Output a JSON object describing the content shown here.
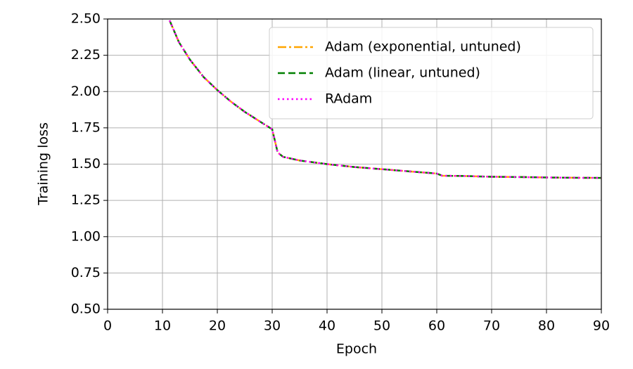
{
  "chart_data": {
    "type": "line",
    "xlabel": "Epoch",
    "ylabel": "Training loss",
    "x": [
      11.3,
      13,
      15,
      17.5,
      20,
      22.5,
      25,
      27.5,
      30,
      31,
      32,
      35,
      40,
      45,
      50,
      55,
      60,
      61,
      65,
      70,
      75,
      80,
      85,
      90
    ],
    "series": [
      {
        "name": "Adam (exponential, untuned)",
        "color": "#ffa500",
        "dash": "dashdot",
        "values": [
          2.49,
          2.34,
          2.22,
          2.1,
          2.01,
          1.93,
          1.86,
          1.8,
          1.74,
          1.58,
          1.55,
          1.525,
          1.5,
          1.48,
          1.465,
          1.45,
          1.435,
          1.42,
          1.418,
          1.413,
          1.411,
          1.408,
          1.406,
          1.405
        ]
      },
      {
        "name": "Adam (linear, untuned)",
        "color": "#008000",
        "dash": "dashed",
        "values": [
          2.49,
          2.34,
          2.22,
          2.1,
          2.01,
          1.93,
          1.86,
          1.8,
          1.74,
          1.58,
          1.55,
          1.525,
          1.5,
          1.48,
          1.465,
          1.45,
          1.435,
          1.42,
          1.418,
          1.413,
          1.411,
          1.408,
          1.406,
          1.405
        ]
      },
      {
        "name": "RAdam",
        "color": "#ff00ff",
        "dash": "dotted",
        "values": [
          2.49,
          2.34,
          2.22,
          2.1,
          2.01,
          1.93,
          1.86,
          1.8,
          1.74,
          1.58,
          1.55,
          1.525,
          1.5,
          1.48,
          1.465,
          1.45,
          1.435,
          1.42,
          1.418,
          1.413,
          1.411,
          1.408,
          1.406,
          1.405
        ]
      }
    ],
    "xlim": [
      0,
      90
    ],
    "xticks": [
      0,
      10,
      20,
      30,
      40,
      50,
      60,
      70,
      80,
      90
    ],
    "ylim": [
      0.5,
      2.5
    ],
    "yticks": [
      {
        "value": 0.5,
        "label": "0.50"
      },
      {
        "value": 0.75,
        "label": "0.75"
      },
      {
        "value": 1,
        "label": "1.00"
      },
      {
        "value": 1.25,
        "label": "1.25"
      },
      {
        "value": 1.5,
        "label": "1.50"
      },
      {
        "value": 1.75,
        "label": "1.75"
      },
      {
        "value": 2,
        "label": "2.00"
      },
      {
        "value": 2.25,
        "label": "2.25"
      },
      {
        "value": 2.5,
        "label": "2.50"
      }
    ],
    "grid": true,
    "legend": "upper right"
  }
}
